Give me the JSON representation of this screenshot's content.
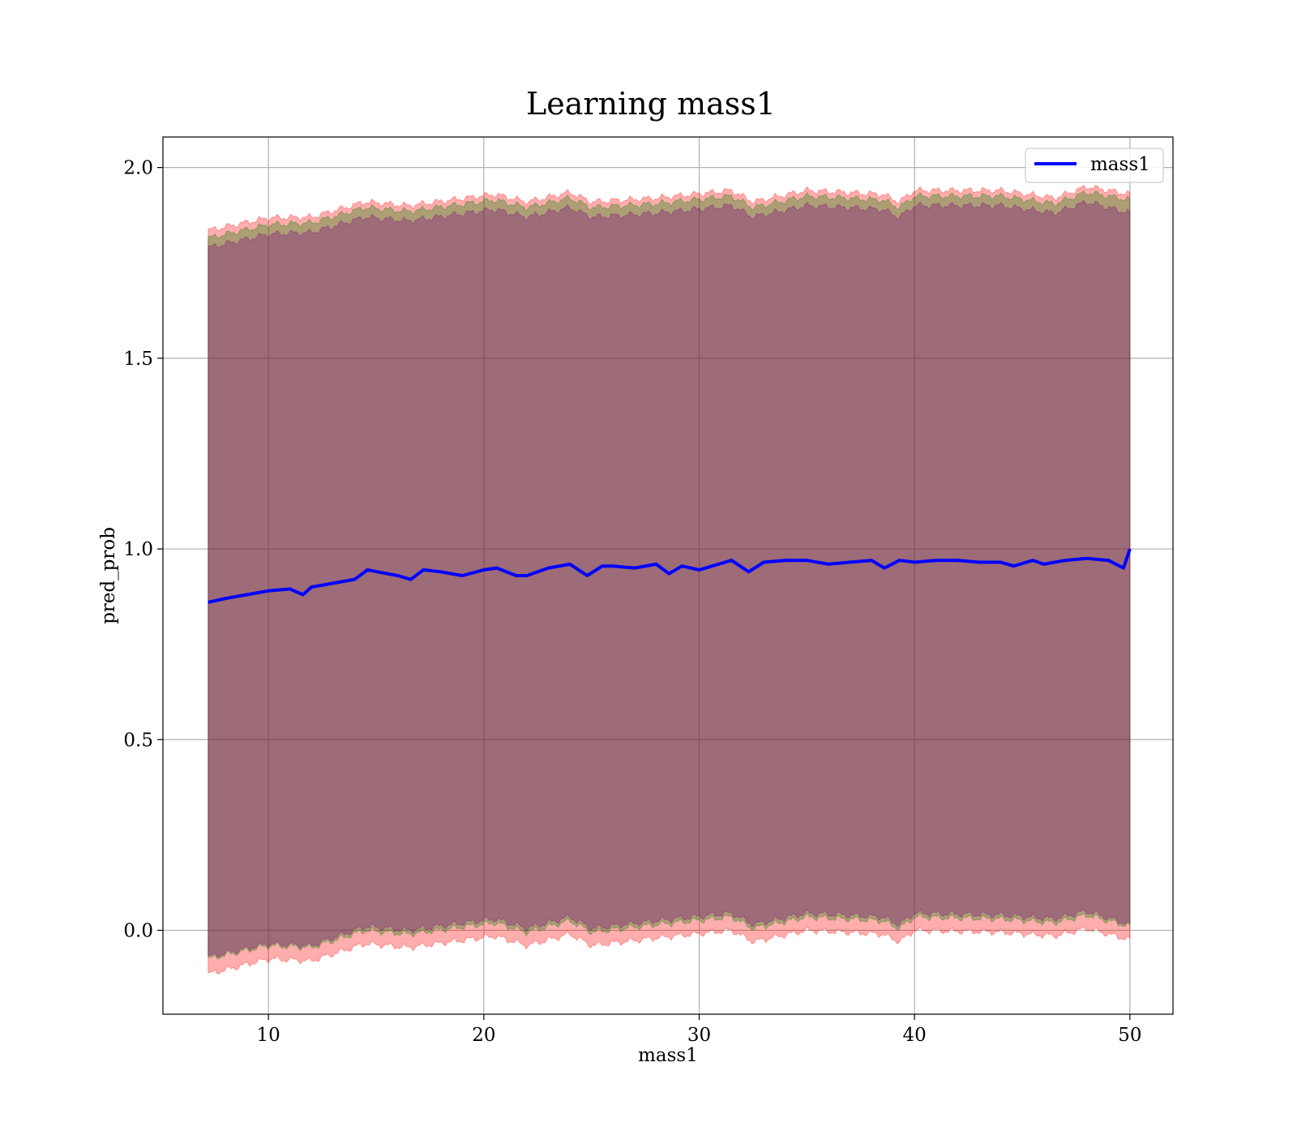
{
  "chart_data": {
    "type": "line",
    "title": "Learning mass1",
    "xlabel": "mass1",
    "ylabel": "pred_prob",
    "xlim": [
      5.1,
      52.0
    ],
    "ylim": [
      -0.22,
      2.08
    ],
    "xticks": [
      10,
      20,
      30,
      40,
      50
    ],
    "yticks": [
      0.0,
      0.5,
      1.0,
      1.5,
      2.0
    ],
    "xtick_labels": [
      "10",
      "20",
      "30",
      "40",
      "50"
    ],
    "ytick_labels": [
      "0.0",
      "0.5",
      "1.0",
      "1.5",
      "2.0"
    ],
    "grid": true,
    "legend": {
      "placement": "top-right",
      "entries": [
        "mass1"
      ]
    },
    "series": [
      {
        "name": "mass1",
        "color": "#0000ff",
        "x": [
          7.2,
          8.0,
          9.0,
          10.0,
          11.0,
          11.6,
          12.0,
          13.0,
          14.0,
          14.6,
          15.5,
          16.0,
          16.6,
          17.2,
          18.0,
          19.0,
          20.0,
          20.6,
          21.5,
          22.0,
          23.0,
          24.0,
          24.8,
          25.5,
          26.0,
          27.0,
          28.0,
          28.6,
          29.2,
          30.0,
          30.6,
          31.5,
          32.3,
          33.0,
          34.0,
          35.0,
          36.0,
          37.0,
          38.0,
          38.6,
          39.3,
          40.0,
          41.0,
          42.0,
          43.0,
          44.0,
          44.6,
          45.5,
          46.0,
          47.0,
          48.0,
          49.0,
          49.7,
          50.0
        ],
        "y": [
          0.86,
          0.87,
          0.88,
          0.89,
          0.895,
          0.88,
          0.9,
          0.91,
          0.92,
          0.945,
          0.935,
          0.93,
          0.92,
          0.945,
          0.94,
          0.93,
          0.945,
          0.95,
          0.93,
          0.93,
          0.95,
          0.96,
          0.93,
          0.955,
          0.955,
          0.95,
          0.96,
          0.935,
          0.955,
          0.945,
          0.955,
          0.97,
          0.94,
          0.965,
          0.97,
          0.97,
          0.96,
          0.965,
          0.97,
          0.95,
          0.97,
          0.965,
          0.97,
          0.97,
          0.965,
          0.965,
          0.955,
          0.97,
          0.96,
          0.97,
          0.975,
          0.97,
          0.95,
          1.0
        ]
      }
    ],
    "bands": [
      {
        "color": "#ff0000",
        "opacity": 0.32,
        "x": [
          7.2,
          10.0,
          12.0,
          14.5,
          16.5,
          20.5,
          22.0,
          24.0,
          25.0,
          28.0,
          31.5,
          32.5,
          35.0,
          38.5,
          39.3,
          40.0,
          44.0,
          46.5,
          48.0,
          50.0
        ],
        "upper": [
          1.835,
          1.868,
          1.87,
          1.91,
          1.9,
          1.93,
          1.91,
          1.935,
          1.91,
          1.92,
          1.94,
          1.91,
          1.94,
          1.93,
          1.91,
          1.94,
          1.94,
          1.92,
          1.95,
          1.93
        ],
        "lower": [
          -0.115,
          -0.075,
          -0.08,
          -0.035,
          -0.045,
          -0.015,
          -0.04,
          -0.01,
          -0.04,
          -0.02,
          0.0,
          -0.03,
          0.0,
          -0.01,
          -0.03,
          0.0,
          -0.005,
          -0.015,
          0.005,
          -0.025
        ]
      },
      {
        "color": "#008000",
        "opacity": 0.32,
        "x": [
          7.2,
          10.0,
          12.0,
          14.5,
          16.5,
          20.5,
          22.0,
          24.0,
          25.0,
          28.0,
          31.5,
          32.5,
          35.0,
          38.5,
          39.3,
          40.0,
          44.0,
          46.5,
          48.0,
          50.0
        ],
        "upper": [
          1.815,
          1.85,
          1.855,
          1.895,
          1.885,
          1.915,
          1.895,
          1.92,
          1.895,
          1.905,
          1.925,
          1.895,
          1.925,
          1.915,
          1.895,
          1.925,
          1.925,
          1.905,
          1.935,
          1.915
        ],
        "lower": [
          -0.075,
          -0.04,
          -0.045,
          0.0,
          -0.01,
          0.02,
          -0.005,
          0.025,
          -0.005,
          0.015,
          0.035,
          0.005,
          0.035,
          0.025,
          0.005,
          0.035,
          0.03,
          0.02,
          0.04,
          0.01
        ]
      },
      {
        "color": "#800080",
        "opacity": 0.32,
        "x": [
          7.2,
          10.0,
          12.0,
          14.5,
          16.5,
          20.5,
          22.0,
          24.0,
          25.0,
          28.0,
          31.5,
          32.5,
          35.0,
          38.5,
          39.3,
          40.0,
          44.0,
          46.5,
          48.0,
          50.0
        ],
        "upper": [
          1.79,
          1.825,
          1.83,
          1.87,
          1.86,
          1.89,
          1.87,
          1.895,
          1.87,
          1.88,
          1.9,
          1.87,
          1.9,
          1.89,
          1.87,
          1.9,
          1.9,
          1.88,
          1.91,
          1.88
        ],
        "lower": [
          -0.07,
          -0.035,
          -0.04,
          0.01,
          0.0,
          0.03,
          0.005,
          0.035,
          0.005,
          0.025,
          0.045,
          0.015,
          0.045,
          0.035,
          0.015,
          0.045,
          0.04,
          0.03,
          0.05,
          0.015
        ]
      }
    ]
  }
}
